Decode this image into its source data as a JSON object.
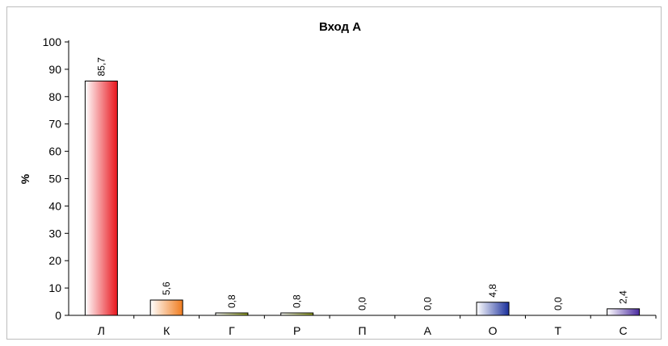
{
  "chart_data": {
    "type": "bar",
    "title": "Вход А",
    "xlabel": "",
    "ylabel": "%",
    "ylim": [
      0,
      100
    ],
    "yticks": [
      0,
      10,
      20,
      30,
      40,
      50,
      60,
      70,
      80,
      90,
      100
    ],
    "categories": [
      "Л",
      "К",
      "Г",
      "Р",
      "П",
      "А",
      "О",
      "Т",
      "С"
    ],
    "values": [
      85.7,
      5.6,
      0.8,
      0.8,
      0.0,
      0.0,
      4.8,
      0.0,
      2.4
    ],
    "data_labels": [
      "85,7",
      "5,6",
      "0,8",
      "0,8",
      "0,0",
      "0,0",
      "4,8",
      "0,0",
      "2,4"
    ],
    "bar_colors": [
      "#e8141b",
      "#f07c1e",
      "#8c9a1c",
      "#8c9a1c",
      "#8fb09c",
      "#c09040",
      "#1a2f9c",
      "#8c8c8c",
      "#4a2aa0"
    ],
    "grid": false,
    "legend": "none"
  }
}
